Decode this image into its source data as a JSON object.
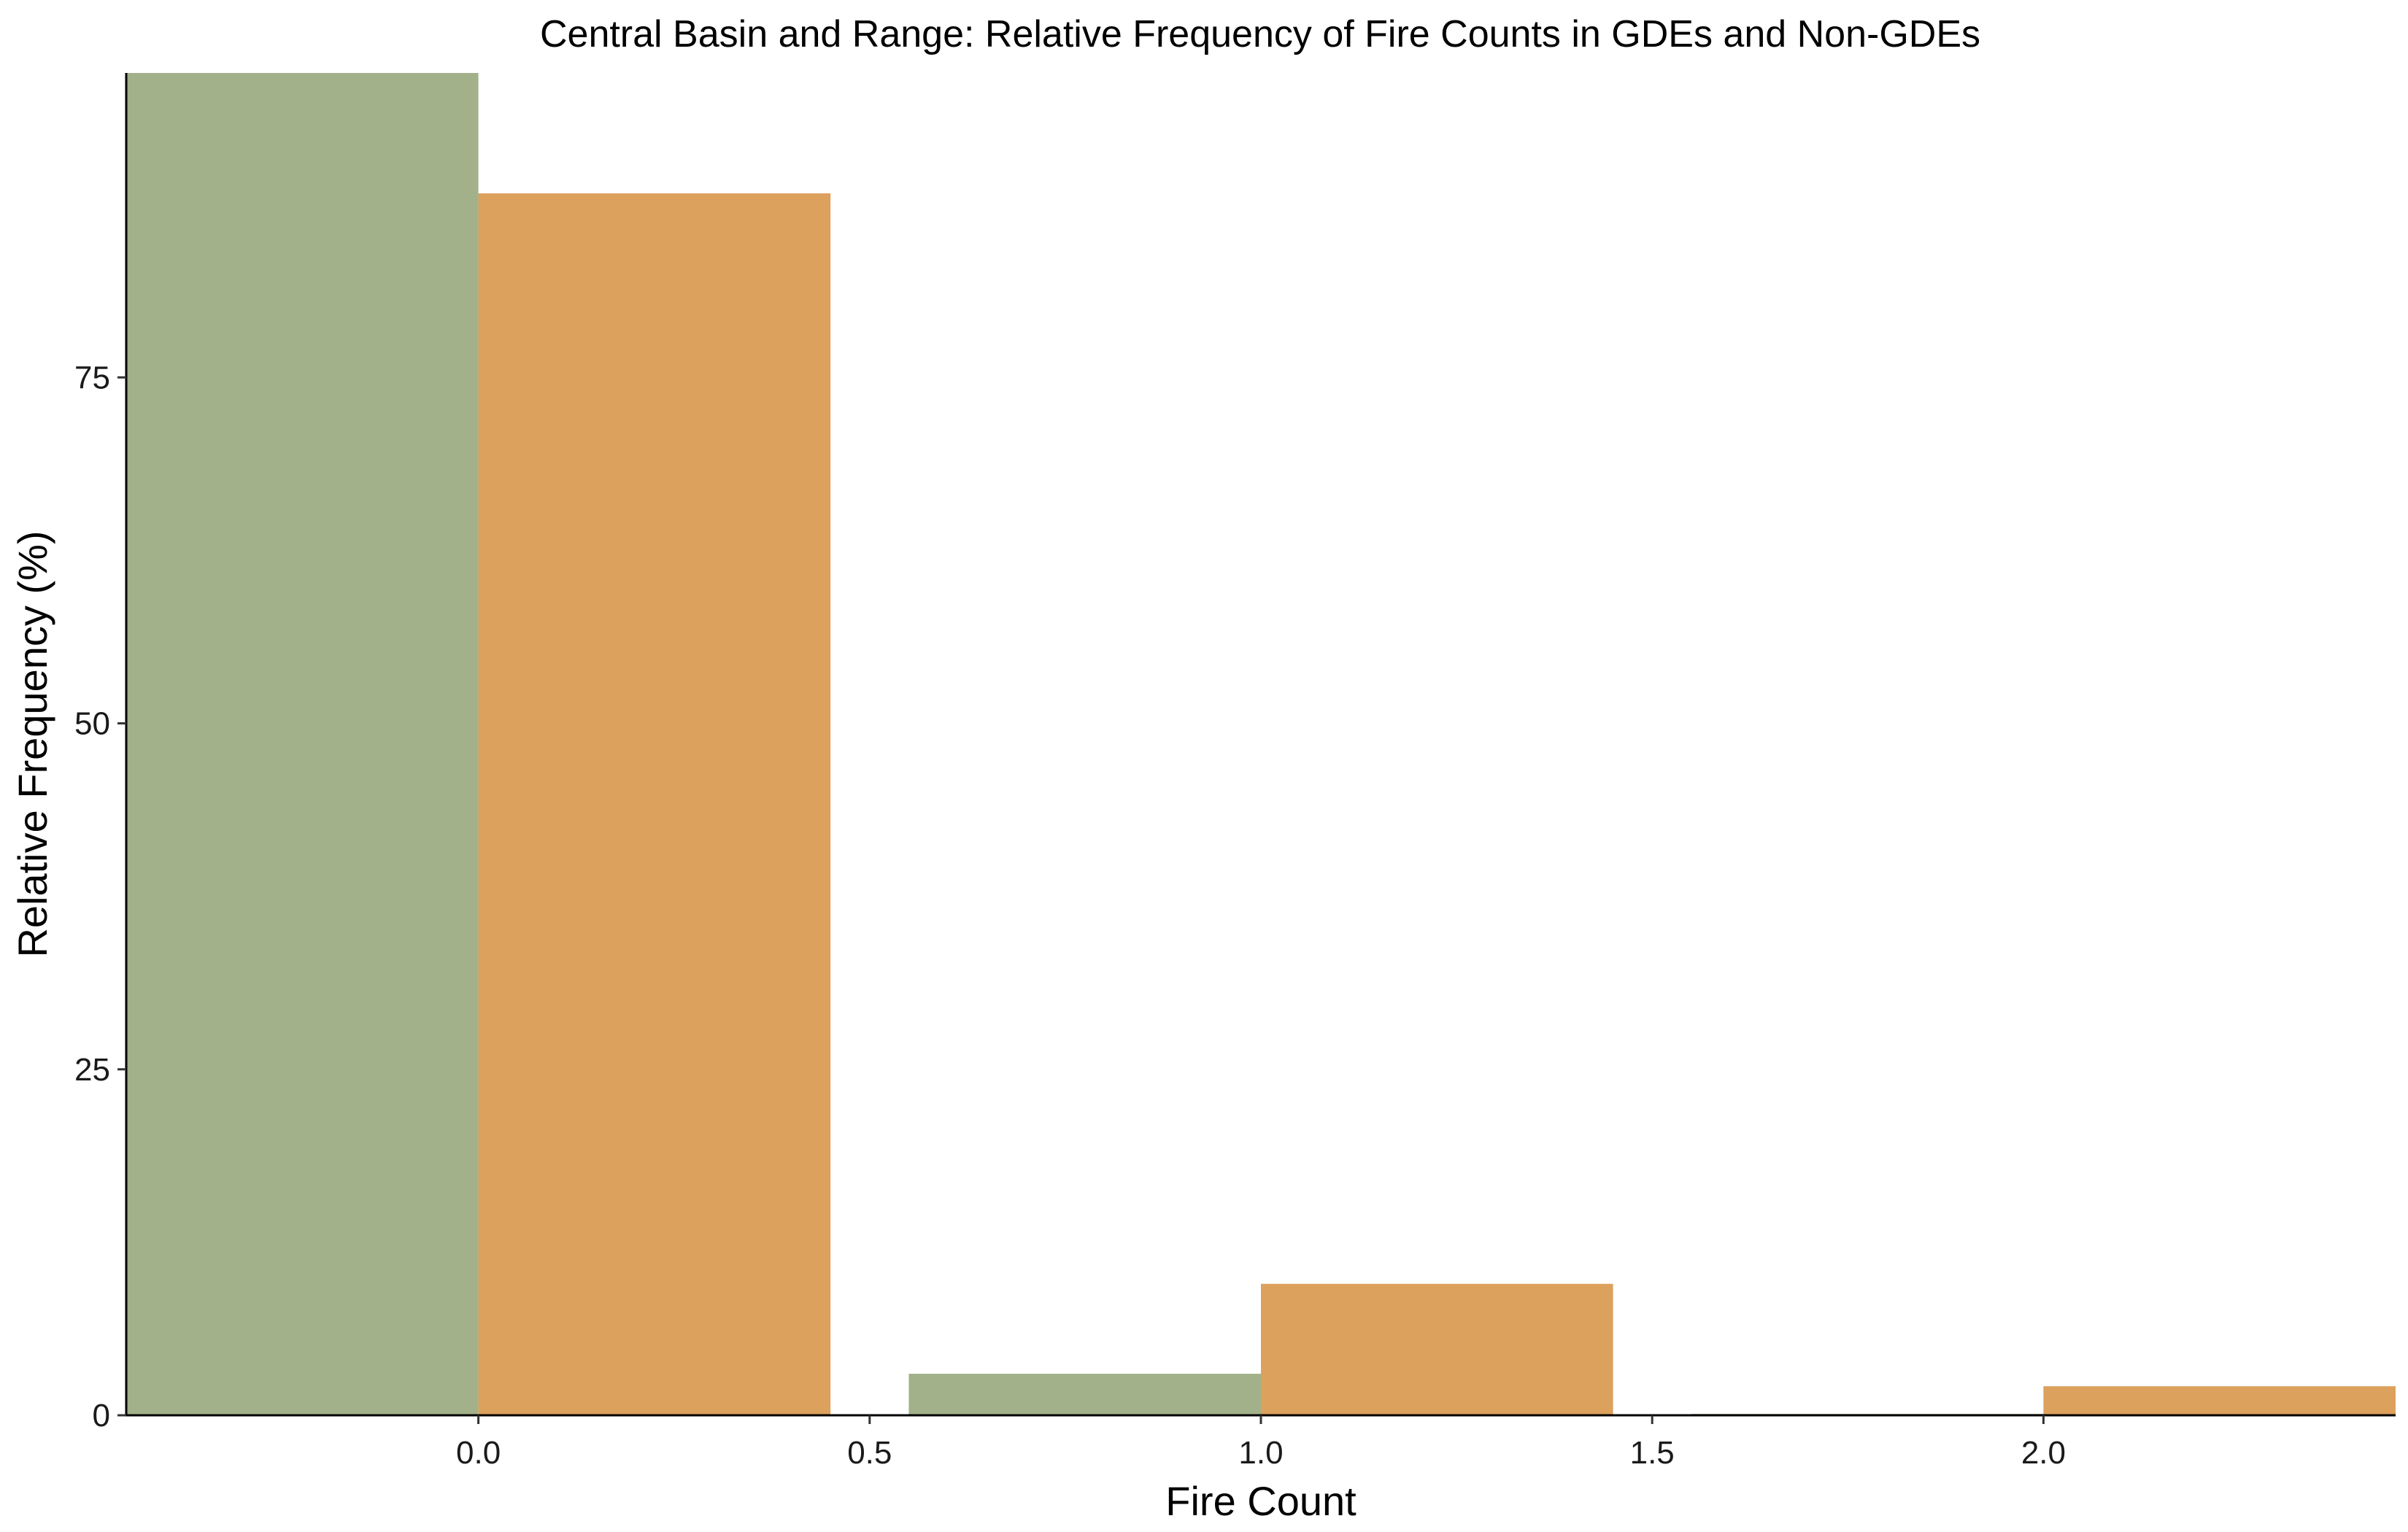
{
  "chart_data": {
    "type": "bar",
    "title": "Central Basin and Range: Relative Frequency of Fire Counts in GDEs and Non-GDEs",
    "xlabel": "Fire Count",
    "ylabel": "Relative Frequency (%)",
    "xlim": [
      -0.45,
      2.45
    ],
    "ylim": [
      0,
      97
    ],
    "x_ticks": [
      0.0,
      0.5,
      1.0,
      1.5,
      2.0
    ],
    "x_tick_labels": [
      "0.0",
      "0.5",
      "1.0",
      "1.5",
      "2.0"
    ],
    "y_ticks": [
      0,
      25,
      50,
      75
    ],
    "y_tick_labels": [
      "0",
      "25",
      "50",
      "75"
    ],
    "grid": false,
    "legend": "none",
    "bar_width": 0.45,
    "categories": [
      0,
      1,
      2
    ],
    "series": [
      {
        "color": "#a2b18a",
        "offset": -0.225,
        "values": [
          97.0,
          3.0,
          0.1
        ]
      },
      {
        "color": "#dca15d",
        "offset": 0.225,
        "values": [
          88.3,
          9.5,
          2.1
        ]
      }
    ]
  }
}
